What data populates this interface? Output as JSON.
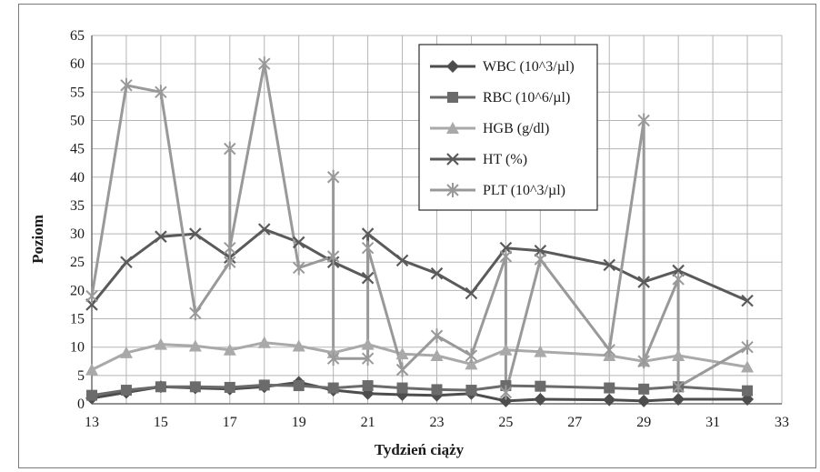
{
  "chart_data": {
    "type": "line",
    "xlabel": "Tydzień ciąży",
    "ylabel": "Poziom",
    "xlim": [
      13,
      33
    ],
    "ylim": [
      0,
      65
    ],
    "xticks": [
      "13",
      "15",
      "17",
      "19",
      "21",
      "23",
      "25",
      "27",
      "29",
      "31",
      "33"
    ],
    "yticks": [
      "0",
      "5",
      "10",
      "15",
      "20",
      "25",
      "30",
      "35",
      "40",
      "45",
      "50",
      "55",
      "60",
      "65"
    ],
    "grid": true,
    "legend_position": "top-right",
    "series": [
      {
        "name": "WBC (10^3/µl)",
        "marker": "diamond",
        "color": "#4d4d4d",
        "points": [
          [
            13,
            1.0
          ],
          [
            14,
            2.0
          ],
          [
            15,
            3.0
          ],
          [
            16,
            2.8
          ],
          [
            17,
            2.6
          ],
          [
            18,
            3.0
          ],
          [
            19,
            3.8
          ],
          [
            20,
            2.4
          ],
          [
            21,
            1.8
          ],
          [
            22,
            1.6
          ],
          [
            23,
            1.5
          ],
          [
            24,
            1.8
          ],
          [
            25,
            0.5
          ],
          [
            26,
            0.8
          ],
          [
            28,
            0.7
          ],
          [
            29,
            0.5
          ],
          [
            30,
            0.8
          ],
          [
            32,
            0.8
          ]
        ]
      },
      {
        "name": "RBC (10^6/µl)",
        "marker": "square",
        "color": "#6b6b6b",
        "points": [
          [
            13,
            1.5
          ],
          [
            14,
            2.4
          ],
          [
            15,
            3.0
          ],
          [
            16,
            3.0
          ],
          [
            17,
            2.9
          ],
          [
            18,
            3.3
          ],
          [
            19,
            3.2
          ],
          [
            20,
            2.8
          ],
          [
            21,
            3.2
          ],
          [
            22,
            2.8
          ],
          [
            23,
            2.5
          ],
          [
            24,
            2.4
          ],
          [
            25,
            3.2
          ],
          [
            26,
            3.1
          ],
          [
            28,
            2.8
          ],
          [
            29,
            2.6
          ],
          [
            30,
            3.0
          ],
          [
            32,
            2.3
          ]
        ]
      },
      {
        "name": "HGB (g/dl)",
        "marker": "triangle",
        "color": "#a9a9a9",
        "points": [
          [
            13,
            6.0
          ],
          [
            14,
            9.0
          ],
          [
            15,
            10.5
          ],
          [
            16,
            10.2
          ],
          [
            17,
            9.5
          ],
          [
            18,
            10.8
          ],
          [
            19,
            10.2
          ],
          [
            20,
            9.0
          ],
          [
            21,
            10.5
          ],
          [
            22,
            8.8
          ],
          [
            23,
            8.5
          ],
          [
            24,
            7.0
          ],
          [
            25,
            9.5
          ],
          [
            26,
            9.2
          ],
          [
            28,
            8.5
          ],
          [
            29,
            7.5
          ],
          [
            30,
            8.5
          ],
          [
            32,
            6.5
          ]
        ]
      },
      {
        "name": "HT (%)",
        "marker": "x",
        "color": "#5a5a5a",
        "points": [
          [
            13,
            17.5
          ],
          [
            14,
            25.0
          ],
          [
            15,
            29.5
          ],
          [
            16,
            30.0
          ],
          [
            17,
            25.8
          ],
          [
            18,
            30.8
          ],
          [
            19,
            28.5
          ],
          [
            20,
            25.0
          ],
          [
            21,
            22.2
          ],
          [
            21,
            30.0
          ],
          [
            22,
            25.3
          ],
          [
            23,
            23.0
          ],
          [
            24,
            19.5
          ],
          [
            25,
            27.5
          ],
          [
            26,
            27.0
          ],
          [
            28,
            24.5
          ],
          [
            29,
            21.5
          ],
          [
            30,
            23.5
          ],
          [
            32,
            18.2
          ]
        ]
      },
      {
        "name": "PLT (10^3/µl)",
        "marker": "star",
        "color": "#999999",
        "points": [
          [
            13,
            19.0
          ],
          [
            14,
            56.2
          ],
          [
            15,
            55.0
          ],
          [
            16,
            16.0
          ],
          [
            17,
            25.0
          ],
          [
            17,
            45.0
          ],
          [
            17,
            27.5
          ],
          [
            18,
            60.0
          ],
          [
            19,
            24.0
          ],
          [
            20,
            26.0
          ],
          [
            20,
            40.0
          ],
          [
            20,
            8.0
          ],
          [
            21,
            8.0
          ],
          [
            21,
            27.5
          ],
          [
            22,
            6.0
          ],
          [
            23,
            12.0
          ],
          [
            24,
            8.5
          ],
          [
            25,
            26.0
          ],
          [
            25,
            2.0
          ],
          [
            26,
            25.5
          ],
          [
            28,
            9.5
          ],
          [
            29,
            50.0
          ],
          [
            29,
            7.5
          ],
          [
            30,
            22.0
          ],
          [
            30,
            3.0
          ],
          [
            32,
            10.0
          ]
        ]
      }
    ]
  }
}
